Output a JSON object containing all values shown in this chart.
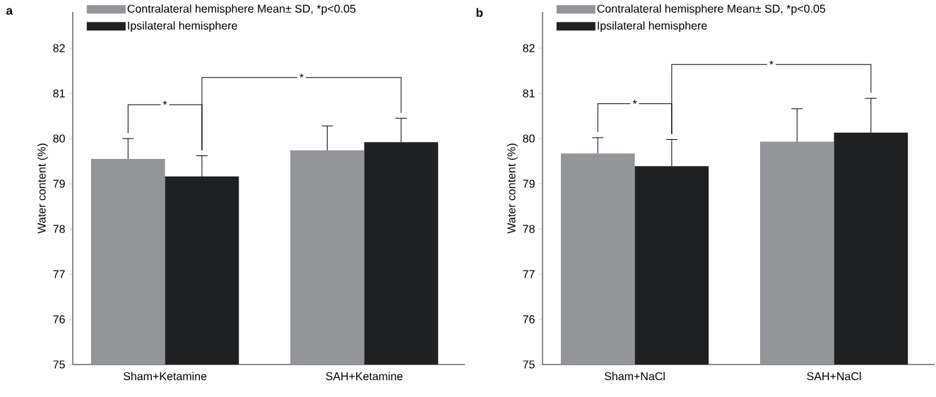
{
  "chart_data": [
    {
      "type": "bar",
      "title": "a",
      "ylabel": "Water content (%)",
      "categories": [
        "Sham+Ketamine",
        "SAH+Ketamine"
      ],
      "series": [
        {
          "name": "Contralateral hemisphere Mean± SD, *p<0.05",
          "color": "#939598",
          "values": [
            79.55,
            79.74
          ],
          "errors": [
            0.45,
            0.54
          ]
        },
        {
          "name": "Ipsilateral hemisphere",
          "color": "#1f2022",
          "values": [
            79.16,
            79.92
          ],
          "errors": [
            0.46,
            0.53
          ]
        }
      ],
      "ylim": [
        75,
        82.8
      ],
      "yticks": [
        75,
        76,
        77,
        78,
        79,
        80,
        81,
        82
      ],
      "legend": "top left",
      "annotations": [
        "*",
        "*"
      ]
    },
    {
      "type": "bar",
      "title": "b",
      "ylabel": "Water content (%)",
      "categories": [
        "Sham+NaCl",
        "SAH+NaCl"
      ],
      "series": [
        {
          "name": "Contralateral hemisphere Mean± SD, *p<0.05",
          "color": "#939598",
          "values": [
            79.67,
            79.93
          ],
          "errors": [
            0.35,
            0.73
          ]
        },
        {
          "name": "Ipsilateral hemisphere",
          "color": "#1f2022",
          "values": [
            79.39,
            80.13
          ],
          "errors": [
            0.59,
            0.76
          ]
        }
      ],
      "ylim": [
        75,
        82.8
      ],
      "yticks": [
        75,
        76,
        77,
        78,
        79,
        80,
        81,
        82
      ],
      "legend": "top left",
      "annotations": [
        "*",
        "*"
      ]
    }
  ]
}
